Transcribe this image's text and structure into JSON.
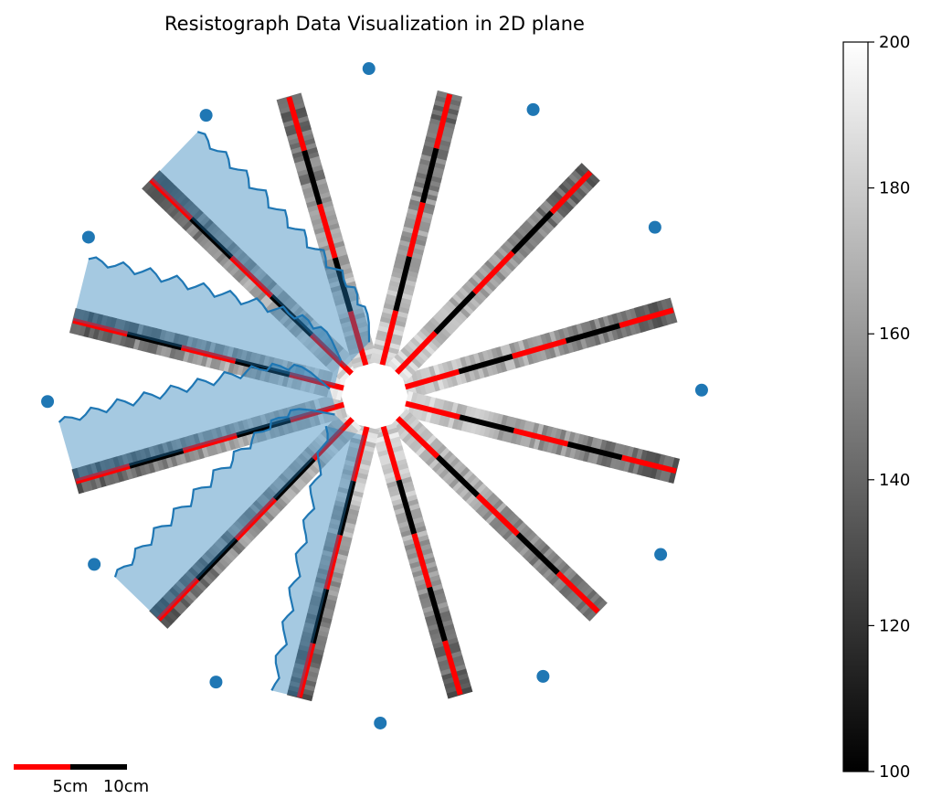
{
  "chart_data": {
    "type": "radial-strip-plot",
    "title": "Resistograph Data Visualization in 2D plane",
    "strip_count": 12,
    "strip_angles_deg": [
      -16,
      14,
      44,
      74,
      104,
      134,
      164,
      194,
      224,
      254,
      284,
      314
    ],
    "strip_segment_colors": [
      "#ff0000",
      "#000000"
    ],
    "overlay_series": [
      {
        "angle_deg": 104,
        "profile": [
          0.46,
          0.42,
          0.4,
          0.44,
          0.48,
          0.45,
          0.41,
          0.38,
          0.43,
          0.47,
          0.44,
          0.4,
          0.36,
          0.41,
          0.45,
          0.42,
          0.38,
          0.35,
          0.4,
          0.44,
          0.41,
          0.37,
          0.33,
          0.38,
          0.42,
          0.39,
          0.35,
          0.31,
          0.36,
          0.4,
          0.37,
          0.33,
          0.29,
          0.34,
          0.38,
          0.36,
          0.32,
          0.28,
          0.31,
          0.33
        ]
      },
      {
        "angle_deg": 134,
        "profile": [
          0.18,
          0.3,
          0.42,
          0.52,
          0.58,
          0.55,
          0.62,
          0.66,
          0.6,
          0.64,
          0.7,
          0.66,
          0.61,
          0.68,
          0.72,
          0.66,
          0.62,
          0.69,
          0.74,
          0.68,
          0.63,
          0.7,
          0.75,
          0.69,
          0.64,
          0.71,
          0.76,
          0.7,
          0.65,
          0.72,
          0.77,
          0.71,
          0.66,
          0.72,
          0.76,
          0.7,
          0.66,
          0.71,
          0.74,
          0.7
        ]
      },
      {
        "angle_deg": 164,
        "profile": [
          0.22,
          0.34,
          0.46,
          0.55,
          0.6,
          0.56,
          0.63,
          0.68,
          0.62,
          0.66,
          0.72,
          0.67,
          0.62,
          0.69,
          0.74,
          0.68,
          0.63,
          0.7,
          0.75,
          0.69,
          0.64,
          0.71,
          0.76,
          0.7,
          0.65,
          0.72,
          0.77,
          0.71,
          0.66,
          0.73,
          0.78,
          0.72,
          0.67,
          0.73,
          0.77,
          0.71,
          0.67,
          0.72,
          0.75,
          0.71
        ]
      },
      {
        "angle_deg": 194,
        "profile": [
          0.3,
          0.4,
          0.5,
          0.58,
          0.62,
          0.58,
          0.66,
          0.7,
          0.64,
          0.68,
          0.74,
          0.69,
          0.64,
          0.71,
          0.76,
          0.7,
          0.65,
          0.72,
          0.77,
          0.71,
          0.66,
          0.73,
          0.78,
          0.72,
          0.67,
          0.74,
          0.79,
          0.73,
          0.68,
          0.75,
          0.8,
          0.74,
          0.69,
          0.75,
          0.79,
          0.73,
          0.69,
          0.74,
          0.77,
          0.73
        ]
      },
      {
        "angle_deg": 224,
        "profile": [
          0.4,
          0.48,
          0.56,
          0.62,
          0.66,
          0.62,
          0.7,
          0.74,
          0.68,
          0.72,
          0.78,
          0.73,
          0.68,
          0.75,
          0.8,
          0.74,
          0.69,
          0.76,
          0.81,
          0.75,
          0.7,
          0.77,
          0.82,
          0.76,
          0.71,
          0.78,
          0.83,
          0.77,
          0.72,
          0.79,
          0.84,
          0.78,
          0.73,
          0.79,
          0.83,
          0.77,
          0.73,
          0.78,
          0.81,
          0.77
        ]
      }
    ],
    "colorbar": {
      "vmin": 100,
      "vmax": 200,
      "ticks": [
        "100",
        "120",
        "140",
        "160",
        "180",
        "200"
      ],
      "colormap": "gray"
    },
    "scale_bar": {
      "labels": [
        "5cm",
        "10cm"
      ],
      "colors": [
        "#ff0000",
        "#000000"
      ]
    },
    "marker_color": "#1f77b4",
    "overlay_color": "#1f77b4",
    "grid": false,
    "axes": "off"
  }
}
